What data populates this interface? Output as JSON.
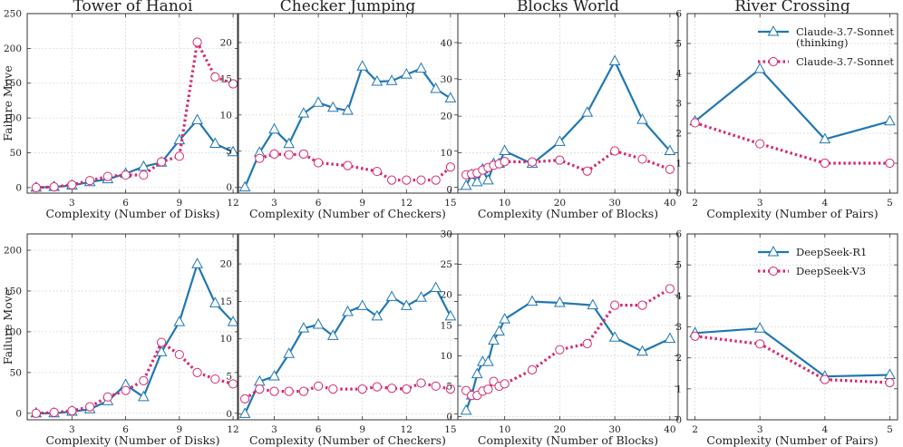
{
  "colors": {
    "blue": "#1f77b4",
    "pink": "#d62a72",
    "grid": "#d9d9d9",
    "axis": "#333333"
  },
  "shared_ylabel": "Failure Move",
  "legends": [
    {
      "entries": [
        {
          "label": [
            "Claude-3.7-Sonnet",
            "(thinking)"
          ],
          "series": 0
        },
        {
          "label": [
            "Claude-3.7-Sonnet"
          ],
          "series": 1
        }
      ]
    },
    {
      "entries": [
        {
          "label": [
            "DeepSeek-R1"
          ],
          "series": 0
        },
        {
          "label": [
            "DeepSeek-V3"
          ],
          "series": 1
        }
      ]
    }
  ],
  "chart_data": [
    {
      "type": "line",
      "title": "Tower of Hanoi",
      "xlabel": "Complexity (Number of Disks)",
      "ylabel": "Failure Move",
      "xlim": [
        0.5,
        12.3
      ],
      "ylim": [
        -8,
        250
      ],
      "xticks": [
        3,
        6,
        9,
        12
      ],
      "yticks": [
        0,
        50,
        100,
        150,
        200,
        250
      ],
      "series": [
        {
          "name": "Claude-3.7-Sonnet (thinking)",
          "marker": "triangle",
          "x": [
            1,
            2,
            3,
            4,
            5,
            6,
            7,
            8,
            9,
            10,
            11,
            12
          ],
          "y": [
            0,
            1,
            3,
            8,
            12,
            20,
            30,
            36,
            68,
            97,
            63,
            51
          ]
        },
        {
          "name": "Claude-3.7-Sonnet",
          "marker": "circle",
          "x": [
            1,
            2,
            3,
            4,
            5,
            6,
            7,
            8,
            9,
            10,
            11,
            12
          ],
          "y": [
            0,
            1,
            4,
            10,
            16,
            18,
            18,
            37,
            45,
            209,
            159,
            149
          ]
        }
      ]
    },
    {
      "type": "line",
      "title": "Checker Jumping",
      "xlabel": "Complexity (Number of Checkers)",
      "ylabel": "",
      "xlim": [
        0.5,
        15.5
      ],
      "ylim": [
        -0.8,
        24
      ],
      "xticks": [
        3,
        6,
        9,
        12,
        15
      ],
      "yticks": [
        0,
        5,
        10,
        15,
        20
      ],
      "series": [
        {
          "name": "Claude-3.7-Sonnet (thinking)",
          "marker": "triangle",
          "x": [
            1,
            2,
            3,
            4,
            5,
            6,
            7,
            8,
            9,
            10,
            11,
            12,
            13,
            14,
            15
          ],
          "y": [
            0,
            4.8,
            8,
            6,
            10.2,
            11.7,
            11,
            10.6,
            16.7,
            14.6,
            14.7,
            15.6,
            16.4,
            13.6,
            12.3
          ]
        },
        {
          "name": "Claude-3.7-Sonnet",
          "marker": "circle",
          "x": [
            2,
            3,
            4,
            5,
            6,
            8,
            10,
            11,
            12,
            13,
            14,
            15
          ],
          "y": [
            4,
            4.6,
            4.5,
            4.6,
            3.4,
            3,
            2.2,
            1,
            1,
            1,
            1,
            2.8
          ]
        }
      ]
    },
    {
      "type": "line",
      "title": "Blocks World",
      "xlabel": "Complexity (Number of Blocks)",
      "ylabel": "",
      "xlim": [
        1.5,
        41.5
      ],
      "ylim": [
        -1,
        48
      ],
      "xticks": [
        10,
        20,
        30,
        40
      ],
      "yticks": [
        0,
        10,
        20,
        30,
        40
      ],
      "series": [
        {
          "name": "Claude-3.7-Sonnet (thinking)",
          "marker": "triangle",
          "x": [
            3,
            4,
            5,
            6,
            7,
            8,
            9,
            10,
            15,
            20,
            25,
            30,
            35,
            40
          ],
          "y": [
            1,
            4,
            2,
            5.5,
            2.5,
            7,
            7,
            10.5,
            7,
            13,
            21,
            35,
            19,
            10.5
          ]
        },
        {
          "name": "Claude-3.7-Sonnet",
          "marker": "circle",
          "x": [
            3,
            4,
            5,
            6,
            7,
            8,
            9,
            10,
            15,
            20,
            25,
            30,
            35,
            40
          ],
          "y": [
            4,
            4.2,
            4.5,
            5.3,
            6,
            6.6,
            7,
            7.6,
            7.5,
            8,
            5,
            10.5,
            8.3,
            5.5
          ]
        }
      ]
    },
    {
      "type": "line",
      "title": "River Crossing",
      "xlabel": "Complexity (Number of Pairs)",
      "ylabel": "",
      "xlim": [
        1.88,
        5.12
      ],
      "ylim": [
        0,
        6
      ],
      "xticks": [
        2,
        3,
        4,
        5
      ],
      "yticks": [
        0,
        1,
        2,
        3,
        4,
        5,
        6
      ],
      "series": [
        {
          "name": "Claude-3.7-Sonnet (thinking)",
          "marker": "triangle",
          "x": [
            2,
            3,
            4,
            5
          ],
          "y": [
            2.4,
            4.15,
            1.8,
            2.4
          ]
        },
        {
          "name": "Claude-3.7-Sonnet",
          "marker": "circle",
          "x": [
            2,
            3,
            4,
            5
          ],
          "y": [
            2.35,
            1.65,
            1,
            1
          ]
        }
      ]
    },
    {
      "type": "line",
      "title": "",
      "xlabel": "Complexity (Number of Disks)",
      "ylabel": "Failure Move",
      "xlim": [
        0.5,
        12.3
      ],
      "ylim": [
        -8,
        220
      ],
      "xticks": [
        3,
        6,
        9,
        12
      ],
      "yticks": [
        0,
        50,
        100,
        150,
        200
      ],
      "series": [
        {
          "name": "DeepSeek-R1",
          "marker": "triangle",
          "x": [
            1,
            2,
            3,
            4,
            5,
            6,
            7,
            8,
            9,
            10,
            11,
            12
          ],
          "y": [
            0,
            0,
            2,
            5,
            15,
            35,
            20,
            75,
            112,
            183,
            135,
            112
          ]
        },
        {
          "name": "DeepSeek-V3",
          "marker": "circle",
          "x": [
            1,
            2,
            3,
            4,
            5,
            6,
            7,
            8,
            9,
            10,
            11,
            12
          ],
          "y": [
            0,
            1,
            3,
            8,
            20,
            28,
            40,
            87,
            72,
            50,
            42,
            36
          ]
        }
      ]
    },
    {
      "type": "line",
      "title": "",
      "xlabel": "Complexity (Number of Checkers)",
      "ylabel": "",
      "xlim": [
        0.5,
        15.5
      ],
      "ylim": [
        -0.8,
        24
      ],
      "xticks": [
        3,
        6,
        9,
        12,
        15
      ],
      "yticks": [
        0,
        5,
        10,
        15,
        20
      ],
      "series": [
        {
          "name": "DeepSeek-R1",
          "marker": "triangle",
          "x": [
            1,
            2,
            3,
            4,
            5,
            6,
            7,
            8,
            9,
            10,
            11,
            12,
            13,
            14,
            15
          ],
          "y": [
            0,
            4.3,
            5,
            8,
            11.4,
            11.9,
            10.4,
            13.6,
            14.4,
            13,
            15.6,
            14.4,
            15.5,
            16.8,
            13
          ]
        },
        {
          "name": "DeepSeek-V3",
          "marker": "circle",
          "x": [
            1,
            2,
            3,
            4,
            5,
            6,
            7,
            9,
            10,
            11,
            12,
            13,
            14,
            15
          ],
          "y": [
            2,
            3.3,
            3,
            3,
            3,
            3.7,
            3.3,
            3.3,
            3.6,
            3.4,
            3.3,
            4.1,
            3.7,
            3.3
          ]
        }
      ]
    },
    {
      "type": "line",
      "title": "",
      "xlabel": "Complexity (Number of Blocks)",
      "ylabel": "",
      "xlim": [
        1.5,
        41.5
      ],
      "ylim": [
        -0.5,
        30
      ],
      "xticks": [
        10,
        20,
        30,
        40
      ],
      "yticks": [
        0,
        5,
        10,
        15,
        20,
        25,
        30
      ],
      "series": [
        {
          "name": "DeepSeek-R1",
          "marker": "triangle",
          "x": [
            3,
            4,
            5,
            6,
            7,
            8,
            9,
            10,
            15,
            20,
            26,
            30,
            35,
            40
          ],
          "y": [
            1,
            3.5,
            7,
            9,
            9,
            12.5,
            14,
            16,
            18.9,
            18.7,
            18.3,
            13,
            10.7,
            12.8
          ]
        },
        {
          "name": "DeepSeek-V3",
          "marker": "circle",
          "x": [
            3,
            4,
            5,
            6,
            7,
            8,
            9,
            10,
            15,
            20,
            25,
            30,
            35,
            40
          ],
          "y": [
            4.3,
            3.5,
            3.5,
            4.2,
            4.5,
            5.8,
            5,
            5.4,
            7.7,
            11,
            12,
            18.3,
            18.3,
            21
          ]
        }
      ]
    },
    {
      "type": "line",
      "title": "",
      "xlabel": "Complexity (Number of Pairs)",
      "ylabel": "",
      "xlim": [
        1.88,
        5.12
      ],
      "ylim": [
        0,
        6
      ],
      "xticks": [
        2,
        3,
        4,
        5
      ],
      "yticks": [
        0,
        1,
        2,
        3,
        4,
        5,
        6
      ],
      "series": [
        {
          "name": "DeepSeek-R1",
          "marker": "triangle",
          "x": [
            2,
            3,
            4,
            5
          ],
          "y": [
            2.8,
            2.95,
            1.4,
            1.45
          ]
        },
        {
          "name": "DeepSeek-V3",
          "marker": "circle",
          "x": [
            2,
            3,
            4,
            5
          ],
          "y": [
            2.7,
            2.45,
            1.3,
            1.2
          ]
        }
      ]
    }
  ]
}
